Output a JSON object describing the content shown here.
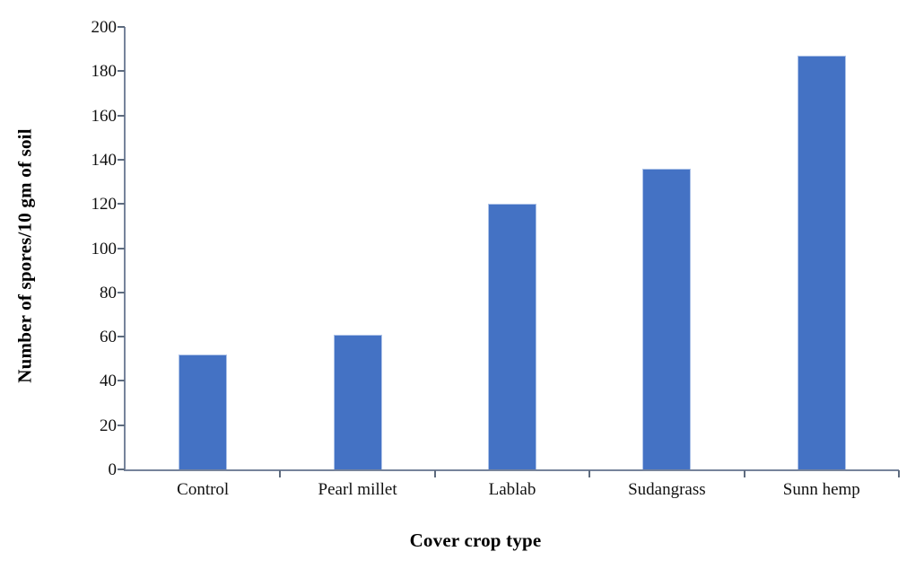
{
  "chart_data": {
    "type": "bar",
    "title": "",
    "categories": [
      "Control",
      "Pearl millet",
      "Lablab",
      "Sudangrass",
      "Sunn hemp"
    ],
    "values": [
      52,
      61,
      120,
      136,
      187
    ],
    "xlabel": "Cover crop type",
    "ylabel": "Number of spores/10 gm of soil",
    "ylim": [
      0,
      200
    ],
    "ytick_step": 20,
    "grid": "off",
    "legend": "none",
    "colors": {
      "bar_fill": "#4472C4",
      "bar_border": "#AEC3E8",
      "axis_line": "#76839B",
      "tick_mark": "#5E6B7E",
      "text": "#111111"
    }
  }
}
